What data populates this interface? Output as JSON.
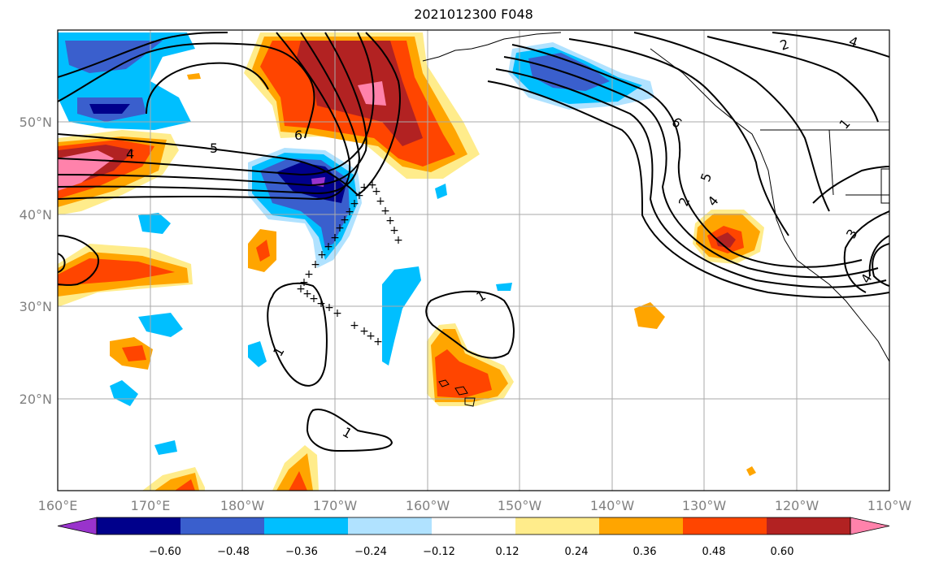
{
  "title": "2021012300 F048",
  "map": {
    "lon_ticks": [
      "160°E",
      "170°E",
      "180°W",
      "170°W",
      "160°W",
      "150°W",
      "140°W",
      "130°W",
      "120°W",
      "110°W"
    ],
    "lat_ticks": [
      "50°N",
      "40°N",
      "30°N",
      "20°N"
    ],
    "grid": true
  },
  "colorbar": {
    "colors": [
      "#9933cc",
      "#00008b",
      "#3a5fcd",
      "#00bfff",
      "#b0e2ff",
      "#ffffff",
      "#ffec8b",
      "#ffa500",
      "#ff4500",
      "#b22222",
      "#ff82ab"
    ],
    "tick_labels": [
      "−0.60",
      "−0.48",
      "−0.36",
      "−0.24",
      "−0.12",
      "0.12",
      "0.24",
      "0.36",
      "0.48",
      "0.60"
    ],
    "extend": "both"
  },
  "contour_labels": [
    {
      "text": "1",
      "at": "south-central"
    },
    {
      "text": "1",
      "at": "subtropics-west"
    },
    {
      "text": "1",
      "at": "hawaii-north"
    },
    {
      "text": "1",
      "at": "northeast"
    },
    {
      "text": "2",
      "at": "gulf-of-alaska"
    },
    {
      "text": "2",
      "at": "northeast-top"
    },
    {
      "text": "3",
      "at": "east"
    },
    {
      "text": "4",
      "at": "west-jet"
    },
    {
      "text": "4",
      "at": "northeast-corner"
    },
    {
      "text": "4",
      "at": "coast"
    },
    {
      "text": "4",
      "at": "southeast"
    },
    {
      "text": "5",
      "at": "west-jet"
    },
    {
      "text": "5",
      "at": "coast"
    },
    {
      "text": "6",
      "at": "aleutians"
    },
    {
      "text": "6",
      "at": "gulf-of-alaska"
    }
  ],
  "legend": {
    "icon": "plus-marker-icon"
  }
}
